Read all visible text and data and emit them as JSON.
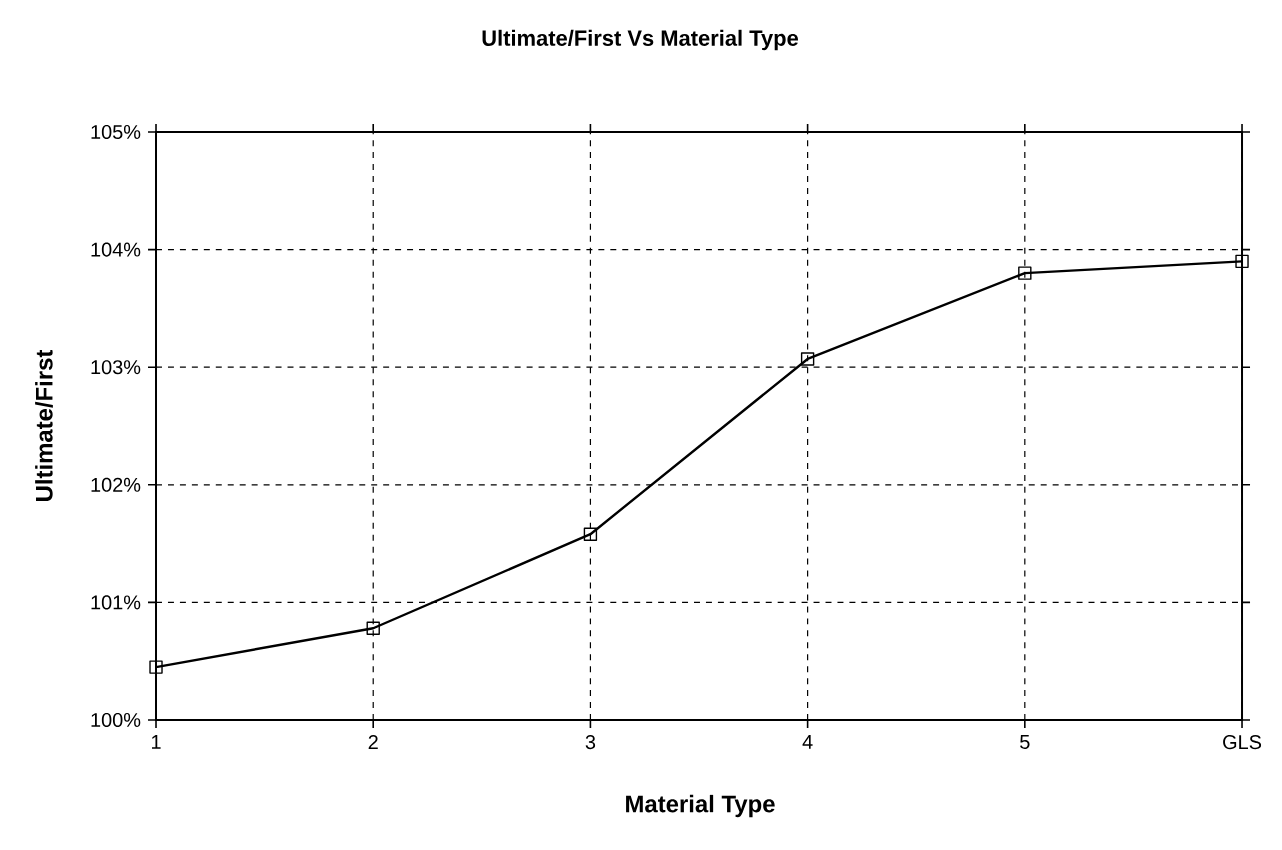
{
  "chart_data": {
    "type": "line",
    "title": "Ultimate/First Vs Material Type",
    "xlabel": "Material Type",
    "ylabel": "Ultimate/First",
    "categories": [
      "1",
      "2",
      "3",
      "4",
      "5",
      "GLS"
    ],
    "series": [
      {
        "color": "#000000",
        "values": [
          100.45,
          100.78,
          101.58,
          103.07,
          103.8,
          103.9
        ]
      }
    ],
    "ylim": [
      100,
      105
    ],
    "yticks": [
      {
        "value": 100,
        "label": "100%"
      },
      {
        "value": 101,
        "label": "101%"
      },
      {
        "value": 102,
        "label": "102%"
      },
      {
        "value": 103,
        "label": "103%"
      },
      {
        "value": 104,
        "label": "104%"
      },
      {
        "value": 105,
        "label": "105%"
      }
    ],
    "grid": true,
    "marker": "square",
    "line_style": "solid"
  }
}
